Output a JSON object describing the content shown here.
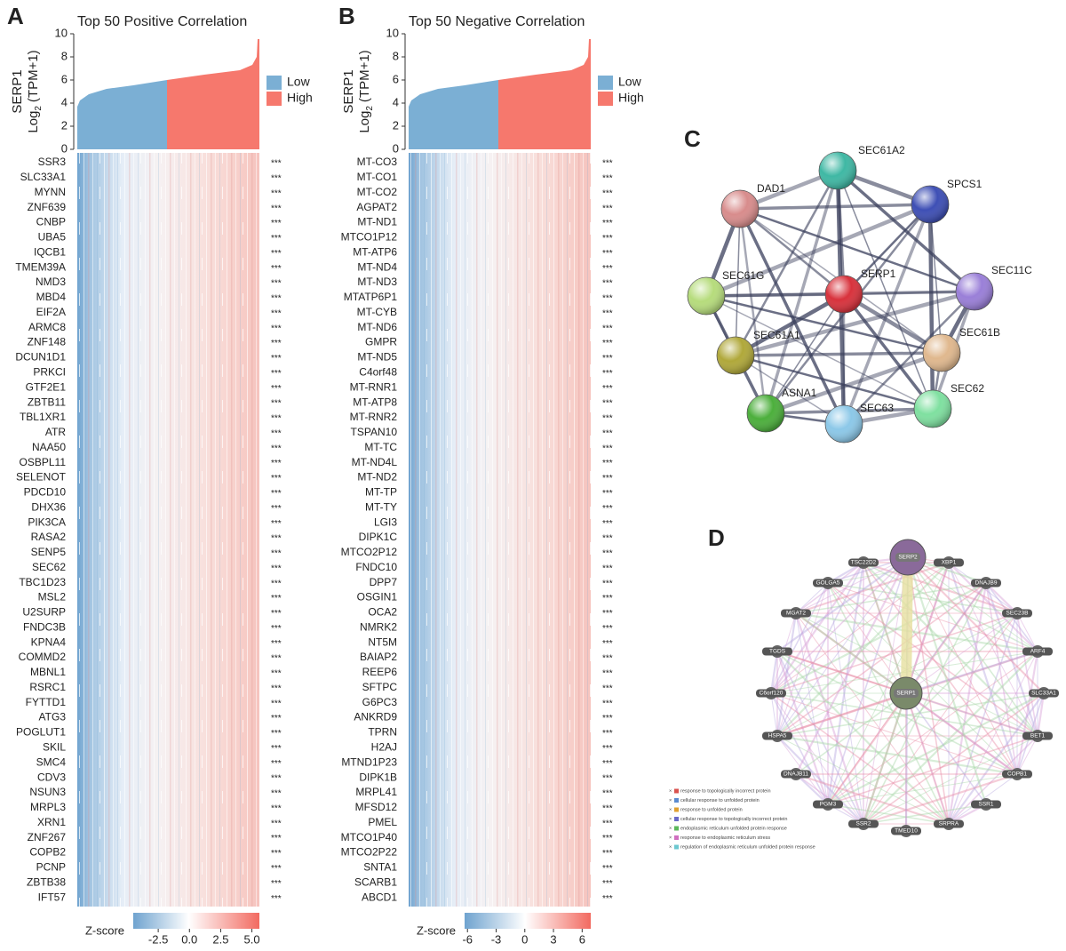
{
  "panels": [
    {
      "label": "A",
      "title": "Top 50 Positive Correlation",
      "ylabel": {
        "gene": "SERP1",
        "log": "Log",
        "base": "2",
        "unit": "(TPM+1)"
      },
      "ylim": [
        0,
        10
      ],
      "yticks": [
        0,
        2,
        4,
        6,
        8,
        10
      ],
      "legend": [
        {
          "name": "Low",
          "color": "#7bafd4"
        },
        {
          "name": "High",
          "color": "#f6786d"
        }
      ],
      "genes": [
        "SSR3",
        "SLC33A1",
        "MYNN",
        "ZNF639",
        "CNBP",
        "UBA5",
        "IQCB1",
        "TMEM39A",
        "NMD3",
        "MBD4",
        "EIF2A",
        "ARMC8",
        "ZNF148",
        "DCUN1D1",
        "PRKCI",
        "GTF2E1",
        "ZBTB11",
        "TBL1XR1",
        "ATR",
        "NAA50",
        "OSBPL11",
        "SELENOT",
        "PDCD10",
        "DHX36",
        "PIK3CA",
        "RASA2",
        "SENP5",
        "SEC62",
        "TBC1D23",
        "MSL2",
        "U2SURP",
        "FNDC3B",
        "KPNA4",
        "COMMD2",
        "MBNL1",
        "RSRC1",
        "FYTTD1",
        "ATG3",
        "POGLUT1",
        "SKIL",
        "SMC4",
        "CDV3",
        "NSUN3",
        "MRPL3",
        "XRN1",
        "ZNF267",
        "COPB2",
        "PCNP",
        "ZBTB38",
        "IFT57"
      ],
      "significance": "***",
      "colorbar": {
        "label": "Z-score",
        "lim": [
          -4.5,
          5.6
        ],
        "ticks": [
          -2.5,
          {
            "value": 0,
            "label": "0.0"
          },
          2.5,
          {
            "value": 5,
            "label": "5.0"
          }
        ]
      }
    },
    {
      "label": "B",
      "title": "Top 50 Negative Correlation",
      "ylabel": {
        "gene": "SERP1",
        "log": "Log",
        "base": "2",
        "unit": "(TPM+1)"
      },
      "ylim": [
        0,
        10
      ],
      "yticks": [
        0,
        2,
        4,
        6,
        8,
        10
      ],
      "legend": [
        {
          "name": "Low",
          "color": "#7bafd4"
        },
        {
          "name": "High",
          "color": "#f6786d"
        }
      ],
      "genes": [
        "MT-CO3",
        "MT-CO1",
        "MT-CO2",
        "AGPAT2",
        "MT-ND1",
        "MTCO1P12",
        "MT-ATP6",
        "MT-ND4",
        "MT-ND3",
        "MTATP6P1",
        "MT-CYB",
        "MT-ND6",
        "GMPR",
        "MT-ND5",
        "C4orf48",
        "MT-RNR1",
        "MT-ATP8",
        "MT-RNR2",
        "TSPAN10",
        "MT-TC",
        "MT-ND4L",
        "MT-ND2",
        "MT-TP",
        "MT-TY",
        "LGI3",
        "DIPK1C",
        "MTCO2P12",
        "FNDC10",
        "DPP7",
        "OSGIN1",
        "OCA2",
        "NMRK2",
        "NT5M",
        "BAIAP2",
        "REEP6",
        "SFTPC",
        "G6PC3",
        "ANKRD9",
        "TPRN",
        "H2AJ",
        "MTND1P23",
        "DIPK1B",
        "MRPL41",
        "MFSD12",
        "PMEL",
        "MTCO1P40",
        "MTCO2P22",
        "SNTA1",
        "SCARB1",
        "ABCD1"
      ],
      "significance": "***",
      "colorbar": {
        "label": "Z-score",
        "lim": [
          -6.3,
          6.9
        ],
        "ticks": [
          -6,
          -3,
          0,
          3,
          6
        ]
      }
    }
  ],
  "network_c": {
    "label": "C",
    "nodes": [
      {
        "label": "SEC61A2",
        "color": "#3fb8a4"
      },
      {
        "label": "SPCS1",
        "color": "#3e4fb5"
      },
      {
        "label": "SEC11C",
        "color": "#9a7fd8"
      },
      {
        "label": "SEC61B",
        "color": "#e0b88e"
      },
      {
        "label": "SEC62",
        "color": "#7fe0a0"
      },
      {
        "label": "SEC63",
        "color": "#8cc8e8"
      },
      {
        "label": "ASNA1",
        "color": "#4caf3c"
      },
      {
        "label": "SEC61A1",
        "color": "#b0a83a"
      },
      {
        "label": "SEC61G",
        "color": "#b6dc7c"
      },
      {
        "label": "DAD1",
        "color": "#d88c8c"
      },
      {
        "label": "SERP1",
        "color": "#d8323c"
      }
    ]
  },
  "network_d": {
    "label": "D",
    "hub": "SERP1",
    "top": "SERP2",
    "nodes": [
      "TSC22D2",
      "XBP1",
      "GOLGA5",
      "DNAJB9",
      "MGAT2",
      "SEC23B",
      "TGDS",
      "ARF4",
      "C6orf120",
      "SLC33A1",
      "HSPA5",
      "BET1",
      "DNAJB11",
      "COPB1",
      "PGM3",
      "SSR1",
      "SSR2",
      "SRPRA",
      "TMED10"
    ],
    "legend_mark": "×",
    "legend": [
      {
        "name": "response to topologically incorrect protein",
        "color": "#d9534f"
      },
      {
        "name": "cellular response to unfolded protein",
        "color": "#5b8bd0"
      },
      {
        "name": "response to unfolded protein",
        "color": "#e0a030"
      },
      {
        "name": "cellular response to topologically incorrect protein",
        "color": "#6a6ac8"
      },
      {
        "name": "endoplasmic reticulum unfolded protein response",
        "color": "#5cb85c"
      },
      {
        "name": "response to endoplasmic reticulum stress",
        "color": "#d070c0"
      },
      {
        "name": "regulation of endoplasmic reticulum unfolded protein response",
        "color": "#6cc8d0"
      }
    ]
  }
}
